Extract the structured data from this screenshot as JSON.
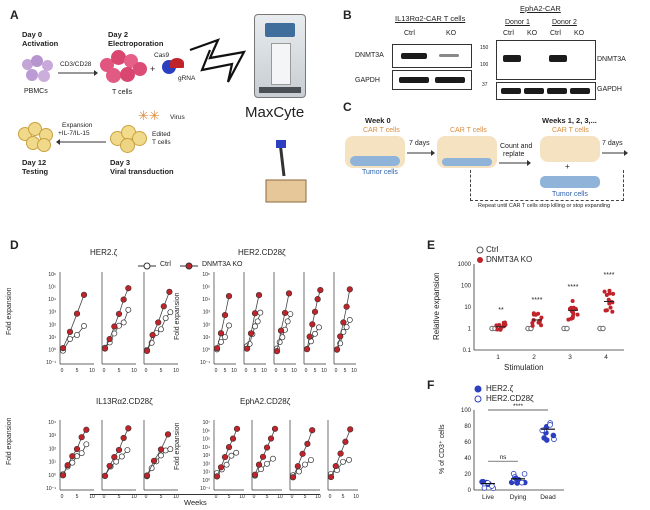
{
  "panels": {
    "A": "A",
    "B": "B",
    "C": "C",
    "D": "D",
    "E": "E",
    "F": "F"
  },
  "panel_a": {
    "day0": "Day 0",
    "day0_sub": "Activation",
    "day2": "Day 2",
    "day2_sub": "Electroporation",
    "day3": "Day 3",
    "day3_sub": "Viral transduction",
    "day12": "Day 12",
    "day12_sub": "Testing",
    "cd3": "CD3/CD28",
    "pbmcs": "PBMCs",
    "tcells": "T cells",
    "cas9": "Cas9",
    "plus": "+",
    "grna": "gRNA",
    "virus": "Virus",
    "edited": "Edited",
    "edited2": "T cells",
    "expansion": "Expansion",
    "il": "+IL-7/IL-15",
    "maxcyte": "MaxCyte"
  },
  "panel_b": {
    "left_title": "IL13Rα2-CAR T cells",
    "right_title": "EphA2-CAR",
    "donor1": "Donor 1",
    "donor2": "Donor 2",
    "ctrl": "Ctrl",
    "ko": "KO",
    "dnmt3a": "DNMT3A",
    "gapdh": "GAPDH",
    "mw150": "150",
    "mw100": "100",
    "mw37": "37"
  },
  "panel_c": {
    "week0": "Week 0",
    "weeks": "Weeks 1, 2, 3,...",
    "car": "CAR T cells",
    "tumor": "Tumor cells",
    "seven": "7 days",
    "count": "Count and",
    "replate": "replate",
    "plus": "+",
    "repeat": "Repeat until CAR T cells stop killing or stop expanding"
  },
  "panel_d": {
    "ylabel": "Fold expansion",
    "xlabel": "Weeks",
    "legend_ctrl": "Ctrl",
    "legend_ko": "DNMT3A KO",
    "plots": [
      {
        "title": "HER2.ζ",
        "ticks": [
          "10⁶",
          "10⁵",
          "10⁴",
          "10³",
          "10²",
          "10¹",
          "10⁰",
          "10⁻¹"
        ],
        "xt": [
          "0",
          "5",
          "10"
        ],
        "n": 3
      },
      {
        "title": "HER2.CD28ζ",
        "ticks": [
          "10⁶",
          "10⁵",
          "10⁴",
          "10³",
          "10²",
          "10¹",
          "10⁰",
          "10⁻¹"
        ],
        "xt": [
          "0",
          "5",
          "10"
        ],
        "n": 5
      },
      {
        "title": "IL13Rα2.CD28ζ",
        "ticks": [
          "10⁴",
          "10³",
          "10²",
          "10¹",
          "10⁰",
          "10⁻¹"
        ],
        "xt": [
          "0",
          "5",
          "10"
        ],
        "n": 3
      },
      {
        "title": "EphA2.CD28ζ",
        "ticks": [
          "10⁷",
          "10⁶",
          "10⁵",
          "10⁴",
          "10³",
          "10²",
          "10¹",
          "10⁰",
          "10⁻¹"
        ],
        "xt": [
          "0",
          "5",
          "10"
        ],
        "n": 4
      }
    ]
  },
  "panel_e": {
    "legend_ctrl": "Ctrl",
    "legend_ko": "DNMT3A KO",
    "ylabel": "Relative expansion",
    "xlabel": "Stimulation",
    "yticks": [
      "1000",
      "100",
      "10",
      "1",
      "0.1"
    ],
    "xticks": [
      "1",
      "2",
      "3",
      "4"
    ],
    "sig": [
      "**",
      "****",
      "****",
      "****"
    ]
  },
  "panel_f": {
    "legend1": "HER2.ζ",
    "legend2": "HER2.CD28ζ",
    "ylabel": "% of CD3⁺ cells",
    "yticks": [
      "100",
      "80",
      "60",
      "40",
      "20",
      "0"
    ],
    "xticks": [
      "Live",
      "Dying",
      "Dead"
    ],
    "ns": "ns",
    "sig": "****"
  },
  "colors": {
    "red": "#c0242a",
    "pink": "#e0609a",
    "blue": "#2b3fbf",
    "orange": "#d98b3a",
    "tumor": "#8fb3d9"
  }
}
